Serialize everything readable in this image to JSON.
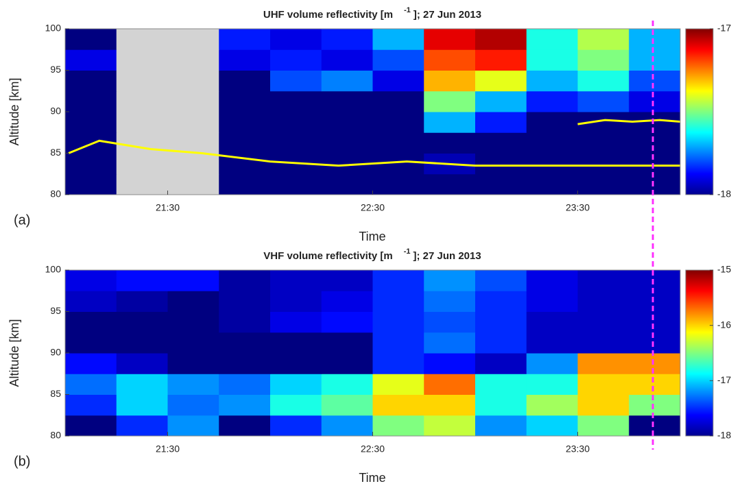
{
  "chart_data": [
    {
      "type": "heatmap",
      "title": "UHF volume reflectivity [m",
      "title_superscript": "-1",
      "title_suffix": "]; 27 Jun 2013",
      "panel_label": "(a)",
      "x_label": "Time",
      "y_label": "Altitude [km]",
      "xlim": [
        1260,
        1440
      ],
      "xticks": [
        {
          "value": 1290,
          "label": "21:30"
        },
        {
          "value": 1350,
          "label": "22:30"
        },
        {
          "value": 1410,
          "label": "23:30"
        }
      ],
      "ylim": [
        80,
        100
      ],
      "yticks": [
        80,
        85,
        90,
        95,
        100
      ],
      "x_bins": [
        1260,
        1275,
        1290,
        1305,
        1320,
        1335,
        1350,
        1365,
        1380,
        1395,
        1410,
        1425,
        1440
      ],
      "y_bins": [
        80,
        82.5,
        85,
        87.5,
        90,
        92.5,
        95,
        97.5,
        100
      ],
      "z": [
        [
          -18,
          null,
          null,
          -18,
          -18,
          -18,
          -18,
          -18,
          -18,
          -18,
          -18,
          -18
        ],
        [
          -18,
          null,
          null,
          -18,
          -18,
          -18,
          -18,
          -17.95,
          -18,
          -18,
          -18,
          -18
        ],
        [
          -18,
          null,
          null,
          -18,
          -18,
          -18,
          -18,
          -18,
          -18,
          -18,
          -18,
          -18
        ],
        [
          -18,
          null,
          null,
          -18,
          -18,
          -18,
          -18,
          -17.7,
          -17.85,
          -18,
          -18,
          -18
        ],
        [
          -18,
          null,
          null,
          -18,
          -18,
          -18,
          -18,
          -17.5,
          -17.7,
          -17.85,
          -17.8,
          -17.9
        ],
        [
          -18,
          null,
          null,
          -18,
          -17.8,
          -17.75,
          -17.9,
          -17.3,
          -17.4,
          -17.7,
          -17.6,
          -17.8
        ],
        [
          -17.9,
          null,
          null,
          -17.9,
          -17.85,
          -17.9,
          -17.8,
          -17.2,
          -17.15,
          -17.6,
          -17.5,
          -17.7
        ],
        [
          -18,
          null,
          null,
          -17.85,
          -17.9,
          -17.85,
          -17.7,
          -17.1,
          -17.05,
          -17.6,
          -17.45,
          -17.7
        ]
      ],
      "missing_color": "#d3d3d3",
      "colorbar": {
        "lim": [
          -18,
          -17
        ],
        "ticks": [
          -18,
          -17
        ]
      },
      "contours": [
        {
          "color": "#ffff00",
          "x": [
            1261,
            1270,
            1285,
            1300,
            1320,
            1340,
            1360,
            1380,
            1400,
            1420,
            1440
          ],
          "y": [
            85,
            86.5,
            85.5,
            85,
            84,
            83.5,
            84,
            83.5,
            83.5,
            83.5,
            83.5
          ]
        },
        {
          "color": "#ffff00",
          "x": [
            1410,
            1418,
            1426,
            1434,
            1440
          ],
          "y": [
            88.5,
            89,
            88.8,
            89,
            88.8
          ]
        }
      ]
    },
    {
      "type": "heatmap",
      "title": "VHF volume reflectivity [m",
      "title_superscript": "-1",
      "title_suffix": "]; 27 Jun 2013",
      "panel_label": "(b)",
      "x_label": "Time",
      "y_label": "Altitude [km]",
      "xlim": [
        1260,
        1440
      ],
      "xticks": [
        {
          "value": 1290,
          "label": "21:30"
        },
        {
          "value": 1350,
          "label": "22:30"
        },
        {
          "value": 1410,
          "label": "23:30"
        }
      ],
      "ylim": [
        80,
        100
      ],
      "yticks": [
        80,
        85,
        90,
        95,
        100
      ],
      "x_bins": [
        1260,
        1275,
        1290,
        1305,
        1320,
        1335,
        1350,
        1365,
        1380,
        1395,
        1410,
        1425,
        1440
      ],
      "y_bins": [
        80,
        82.5,
        85,
        87.5,
        90,
        92.5,
        95,
        97.5,
        100
      ],
      "z": [
        [
          -18,
          -17.5,
          -17.2,
          -18,
          -17.5,
          -17.2,
          -16.5,
          -16.3,
          -17.2,
          -17,
          -16.5,
          -18
        ],
        [
          -17.5,
          -17,
          -17.3,
          -17.2,
          -16.8,
          -16.6,
          -16,
          -16,
          -16.8,
          -16.4,
          -16,
          -16.5
        ],
        [
          -17.3,
          -17,
          -17.2,
          -17.3,
          -17,
          -16.8,
          -16.2,
          -15.7,
          -16.8,
          -16.8,
          -16,
          -16
        ],
        [
          -17.6,
          -17.8,
          -18,
          -18,
          -18,
          -18,
          -17.5,
          -17.6,
          -17.8,
          -17.2,
          -15.8,
          -15.8
        ],
        [
          -18,
          -18,
          -18,
          -18,
          -18,
          -18,
          -17.5,
          -17.3,
          -17.5,
          -17.8,
          -17.8,
          -17.8
        ],
        [
          -18,
          -18,
          -18,
          -17.9,
          -17.7,
          -17.6,
          -17.5,
          -17.4,
          -17.5,
          -17.8,
          -17.8,
          -17.8
        ],
        [
          -17.8,
          -17.9,
          -18,
          -17.9,
          -17.8,
          -17.7,
          -17.5,
          -17.3,
          -17.5,
          -17.7,
          -17.8,
          -17.8
        ],
        [
          -17.7,
          -17.6,
          -17.6,
          -17.9,
          -17.8,
          -17.8,
          -17.5,
          -17.2,
          -17.4,
          -17.7,
          -17.8,
          -17.8
        ]
      ],
      "missing_color": "#d3d3d3",
      "colorbar": {
        "lim": [
          -18,
          -15
        ],
        "ticks": [
          -18,
          -17,
          -16,
          -15
        ]
      }
    }
  ],
  "marker": {
    "x": 1432,
    "color": "#ff33ff"
  }
}
